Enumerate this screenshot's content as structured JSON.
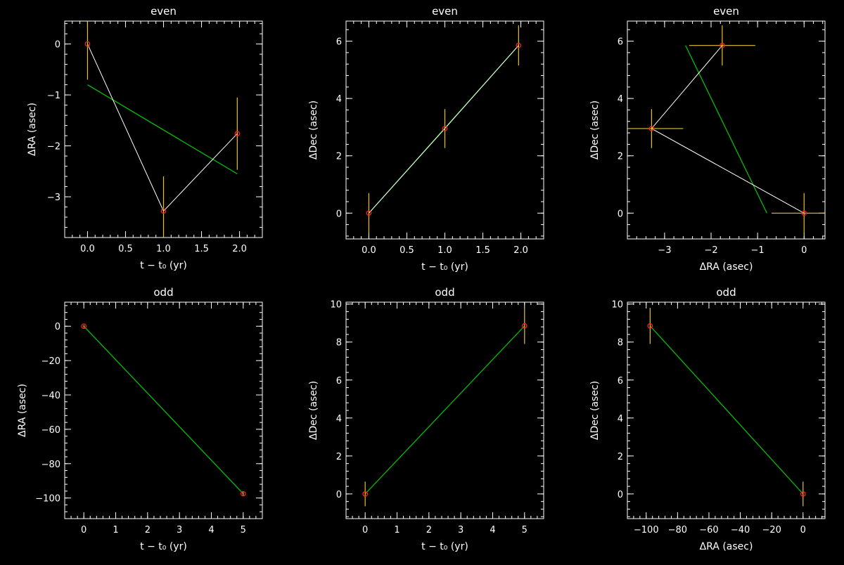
{
  "chart_data": [
    {
      "type": "scatter",
      "title": "even",
      "xlabel": "t − t₀ (yr)",
      "ylabel": "ΔRA (asec)",
      "xlim": [
        -0.3,
        2.3
      ],
      "ylim": [
        -3.8,
        0.45
      ],
      "xticks": [
        0.0,
        0.5,
        1.0,
        1.5,
        2.0
      ],
      "xticklabels": [
        "0.0",
        "0.5",
        "1.0",
        "1.5",
        "2.0"
      ],
      "yticks": [
        -3,
        -2,
        -1,
        0
      ],
      "yticklabels": [
        "−3",
        "−2",
        "−1",
        "0"
      ],
      "points": [
        {
          "x": 0.0,
          "y": 0.0,
          "yerr": 0.7
        },
        {
          "x": 1.0,
          "y": -3.28,
          "yerr": 0.68
        },
        {
          "x": 1.97,
          "y": -1.76,
          "yerr": 0.71
        }
      ],
      "connect_points": true,
      "fit": {
        "x": [
          0.0,
          1.97
        ],
        "y": [
          -0.8,
          -2.55
        ]
      }
    },
    {
      "type": "scatter",
      "title": "even",
      "xlabel": "t − t₀ (yr)",
      "ylabel": "ΔDec (asec)",
      "xlim": [
        -0.3,
        2.3
      ],
      "ylim": [
        -0.9,
        6.7
      ],
      "xticks": [
        0.0,
        0.5,
        1.0,
        1.5,
        2.0
      ],
      "xticklabels": [
        "0.0",
        "0.5",
        "1.0",
        "1.5",
        "2.0"
      ],
      "yticks": [
        0,
        2,
        4,
        6
      ],
      "yticklabels": [
        "0",
        "2",
        "4",
        "6"
      ],
      "points": [
        {
          "x": 0.0,
          "y": 0.0,
          "yerr": 0.7
        },
        {
          "x": 1.0,
          "y": 2.95,
          "yerr": 0.68
        },
        {
          "x": 1.97,
          "y": 5.85,
          "yerr": 0.7
        }
      ],
      "connect_points": true,
      "fit": {
        "x": [
          0.0,
          1.97
        ],
        "y": [
          0.0,
          5.85
        ]
      }
    },
    {
      "type": "scatter",
      "title": "even",
      "xlabel": "ΔRA (asec)",
      "ylabel": "ΔDec (asec)",
      "xlim": [
        -3.8,
        0.45
      ],
      "ylim": [
        -0.9,
        6.7
      ],
      "xticks": [
        -3,
        -2,
        -1,
        0
      ],
      "xticklabels": [
        "−3",
        "−2",
        "−1",
        "0"
      ],
      "yticks": [
        0,
        2,
        4,
        6
      ],
      "yticklabels": [
        "0",
        "2",
        "4",
        "6"
      ],
      "points": [
        {
          "x": 0.0,
          "y": 0.0,
          "xerr": 0.7,
          "yerr": 0.7
        },
        {
          "x": -3.28,
          "y": 2.95,
          "xerr": 0.68,
          "yerr": 0.68
        },
        {
          "x": -1.76,
          "y": 5.85,
          "xerr": 0.71,
          "yerr": 0.7
        }
      ],
      "connect_points": true,
      "fit": {
        "x": [
          -0.8,
          -2.55
        ],
        "y": [
          0.0,
          5.85
        ]
      }
    },
    {
      "type": "scatter",
      "title": "odd",
      "xlabel": "t − t₀ (yr)",
      "ylabel": "ΔRA (asec)",
      "xlim": [
        -0.6,
        5.6
      ],
      "ylim": [
        -112,
        14
      ],
      "xticks": [
        0,
        1,
        2,
        3,
        4,
        5
      ],
      "xticklabels": [
        "0",
        "1",
        "2",
        "3",
        "4",
        "5"
      ],
      "yticks": [
        -100,
        -80,
        -60,
        -40,
        -20,
        0
      ],
      "yticklabels": [
        "−100",
        "−80",
        "−60",
        "−40",
        "−20",
        "0"
      ],
      "points": [
        {
          "x": 0.0,
          "y": 0.0,
          "yerr": 0.7
        },
        {
          "x": 5.0,
          "y": -97.5,
          "yerr": 1.0
        }
      ],
      "connect_points": true,
      "fit": {
        "x": [
          0.0,
          5.0
        ],
        "y": [
          0.0,
          -97.5
        ]
      }
    },
    {
      "type": "scatter",
      "title": "odd",
      "xlabel": "t − t₀ (yr)",
      "ylabel": "ΔDec (asec)",
      "xlim": [
        -0.6,
        5.6
      ],
      "ylim": [
        -1.3,
        10.1
      ],
      "xticks": [
        0,
        1,
        2,
        3,
        4,
        5
      ],
      "xticklabels": [
        "0",
        "1",
        "2",
        "3",
        "4",
        "5"
      ],
      "yticks": [
        0,
        2,
        4,
        6,
        8,
        10
      ],
      "yticklabels": [
        "0",
        "2",
        "4",
        "6",
        "8",
        "10"
      ],
      "points": [
        {
          "x": 0.0,
          "y": 0.0,
          "yerr": 0.65
        },
        {
          "x": 5.0,
          "y": 8.85,
          "yerr": 0.95
        }
      ],
      "connect_points": true,
      "fit": {
        "x": [
          0.0,
          5.0
        ],
        "y": [
          0.0,
          8.85
        ]
      }
    },
    {
      "type": "scatter",
      "title": "odd",
      "xlabel": "ΔRA (asec)",
      "ylabel": "ΔDec (asec)",
      "xlim": [
        -112,
        14
      ],
      "ylim": [
        -1.3,
        10.1
      ],
      "xticks": [
        -100,
        -80,
        -60,
        -40,
        -20,
        0
      ],
      "xticklabels": [
        "−100",
        "−80",
        "−60",
        "−40",
        "−20",
        "0"
      ],
      "yticks": [
        0,
        2,
        4,
        6,
        8,
        10
      ],
      "yticklabels": [
        "0",
        "2",
        "4",
        "6",
        "8",
        "10"
      ],
      "points": [
        {
          "x": 0.0,
          "y": 0.0,
          "yerr": 0.65
        },
        {
          "x": -97.5,
          "y": 8.85,
          "yerr": 0.95
        }
      ],
      "connect_points": true,
      "fit": {
        "x": [
          0.0,
          -97.5
        ],
        "y": [
          0.0,
          8.85
        ]
      }
    }
  ],
  "colors": {
    "background": "#000000",
    "axes": "#ffffff",
    "connect_line": "#ffffff",
    "fit_line": "#00cc00",
    "error_bar": "#e8c030",
    "marker": "#ff2020"
  }
}
